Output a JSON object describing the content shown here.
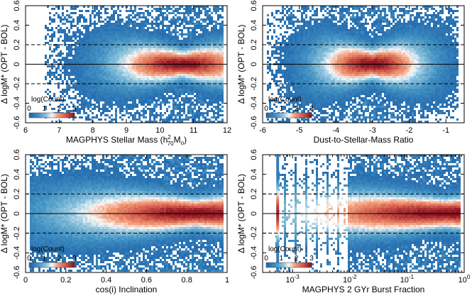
{
  "chart_data": [
    {
      "type": "heatmap",
      "panel": "stellar-mass",
      "xlabel_main": "MAGPHYS Stellar Mass (h",
      "xlabel_sup": "2",
      "xlabel_sub": "70",
      "xlabel_m": "M",
      "xlabel_sub2": "o",
      "xlabel_end": ")",
      "ylabel": "Δ logM* (OPT - BOL)",
      "xlim": [
        6,
        12
      ],
      "ylim": [
        -0.6,
        0.6
      ],
      "xticks": [
        6,
        7,
        8,
        9,
        10,
        11,
        12
      ],
      "yticks": [
        -0.6,
        -0.4,
        -0.2,
        0,
        0.2,
        0.4,
        0.6
      ],
      "xscale": "linear",
      "hlines": [
        {
          "y": 0,
          "style": "solid"
        },
        {
          "y": 0.2,
          "style": "dashed"
        },
        {
          "y": -0.2,
          "style": "dashed"
        }
      ],
      "density": {
        "center": 10.7,
        "xspread": 1.4,
        "spread0": 0.06,
        "xmin": 6.6,
        "xmax": 11.95
      },
      "colorbar": {
        "title": "log(Count)",
        "ticks": [
          "0",
          "1",
          "2",
          "3"
        ]
      }
    },
    {
      "type": "heatmap",
      "panel": "dust-ratio",
      "xlabel": "Dust-to-Stellar-Mass Ratio",
      "ylabel": "Δ logM* (OPT - BOL)",
      "xlim": [
        -6,
        -0.5
      ],
      "ylim": [
        -0.6,
        0.6
      ],
      "xticks": [
        -6,
        -5,
        -4,
        -3,
        -2,
        -1
      ],
      "yticks": [
        -0.6,
        -0.4,
        -0.2,
        0,
        0.2,
        0.4,
        0.6
      ],
      "xscale": "linear",
      "hlines": [
        {
          "y": 0,
          "style": "solid"
        },
        {
          "y": 0.2,
          "style": "dashed"
        },
        {
          "y": -0.2,
          "style": "dashed"
        }
      ],
      "density": {
        "center": -3.0,
        "xspread": 1.0,
        "spread0": 0.07,
        "xmin": -5.9,
        "xmax": -0.6
      },
      "colorbar": {
        "title": "log(Count)",
        "ticks": [
          "0",
          "1",
          "2",
          "3"
        ]
      }
    },
    {
      "type": "heatmap",
      "panel": "inclination",
      "xlabel": "cos(i) Inclination",
      "ylabel": "Δ logM* (OPT - BOL)",
      "xlim": [
        0,
        1
      ],
      "ylim": [
        -0.6,
        0.6
      ],
      "xticks": [
        0,
        0.2,
        0.4,
        0.6,
        0.8,
        1
      ],
      "yticks": [
        -0.6,
        -0.4,
        -0.2,
        0,
        0.2,
        0.4,
        0.6
      ],
      "xscale": "linear",
      "hlines": [
        {
          "y": 0,
          "style": "solid"
        },
        {
          "y": 0.2,
          "style": "dashed"
        },
        {
          "y": -0.2,
          "style": "dashed"
        }
      ],
      "density": {
        "center": 0.85,
        "xspread": 0.45,
        "spread0": 0.07,
        "xmin": 0.02,
        "xmax": 0.99
      },
      "colorbar": {
        "title": "log(Count)",
        "ticks": [
          "0",
          "1",
          "2",
          "3"
        ]
      }
    },
    {
      "type": "heatmap",
      "panel": "burst-fraction",
      "xlabel": "MAGPHYS 2 GYr Burst Fraction",
      "ylabel": "Δ logM* (OPT - BOL)",
      "xlim": [
        0.0003,
        1
      ],
      "ylim": [
        -0.6,
        0.6
      ],
      "xticks": [
        0.001,
        0.01,
        0.1,
        1
      ],
      "xtick_base": "10",
      "xtick_exp": [
        "-3",
        "-2",
        "-1",
        "0"
      ],
      "yticks": [
        -0.6,
        -0.4,
        -0.2,
        0,
        0.2,
        0.4,
        0.6
      ],
      "xscale": "log",
      "hlines": [
        {
          "y": 0,
          "style": "solid"
        },
        {
          "y": 0.2,
          "style": "dashed"
        },
        {
          "y": -0.2,
          "style": "dashed"
        }
      ],
      "density": {
        "center": 0.5,
        "xspread": 1.2,
        "spread0": 0.07,
        "xmin": 0.0005,
        "xmax": 0.95
      },
      "colorbar": {
        "title": "log(Count)",
        "ticks": [
          "0",
          "1",
          "2",
          "3"
        ]
      }
    }
  ]
}
